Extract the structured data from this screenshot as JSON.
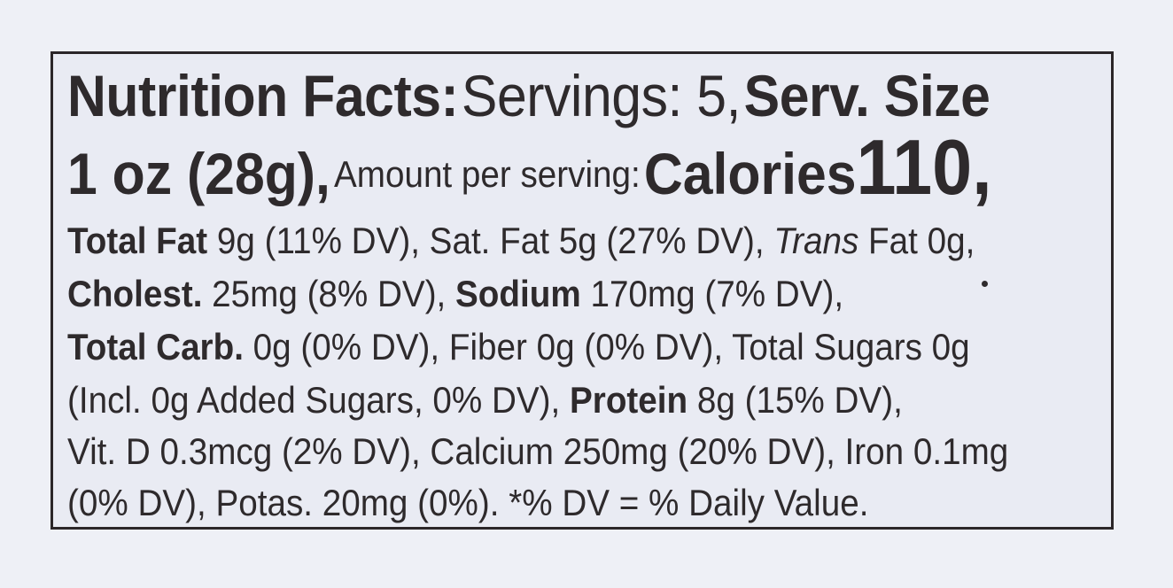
{
  "header": {
    "title": "Nutrition Facts:",
    "servings": "Servings: 5,",
    "serv_size_label": "Serv. Size",
    "serv_size_value": "1 oz (28g),",
    "amount_label": "Amount per serving:",
    "calories_label": "Calories",
    "calories_value": "110,"
  },
  "nutrients": {
    "total_fat_label": "Total Fat",
    "total_fat_value": "9g (11% DV), Sat. Fat 5g (27% DV),",
    "trans_label": "Trans",
    "trans_value": "Fat 0g,",
    "cholest_label": "Cholest.",
    "cholest_value": "25mg (8% DV),",
    "sodium_label": "Sodium",
    "sodium_value": "170mg (7% DV),",
    "carb_label": "Total Carb.",
    "carb_value": "0g (0% DV), Fiber 0g (0% DV), Total Sugars 0g",
    "added_sugars": "(Incl. 0g Added Sugars, 0% DV),",
    "protein_label": "Protein",
    "protein_value": "8g (15% DV),",
    "vitamins": "Vit. D 0.3mcg (2% DV), Calcium 250mg (20% DV), Iron 0.1mg",
    "footer": "(0% DV), Potas. 20mg (0%). *% DV = % Daily Value."
  }
}
